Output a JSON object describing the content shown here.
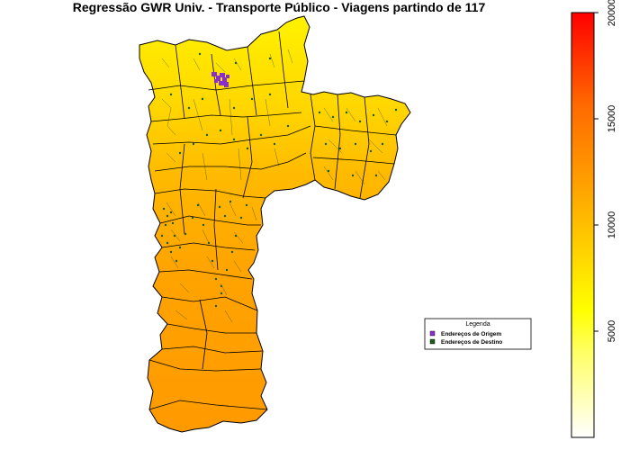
{
  "title": "Regressão GWR Univ. - Transporte Público - Viagens partindo de 117",
  "legend": {
    "title": "Legenda",
    "items": [
      {
        "label": "Endereços de Origem",
        "color": "#8b2fc9"
      },
      {
        "label": "Endereços de Destino",
        "color": "#1a5a1a"
      }
    ]
  },
  "colorbar": {
    "min": 0,
    "max": 20000,
    "ticks": [
      "5000",
      "10000",
      "15000",
      "20000"
    ],
    "colors": [
      "#ffffff",
      "#ffff66",
      "#ffff00",
      "#ffd000",
      "#ff9f00",
      "#ff6a00",
      "#ff3300",
      "#ff0000"
    ]
  },
  "map": {
    "region_colors": {
      "north": "#ffee00",
      "center": "#ffc400",
      "east": "#f5a21b",
      "south": "#ff9f00"
    }
  }
}
